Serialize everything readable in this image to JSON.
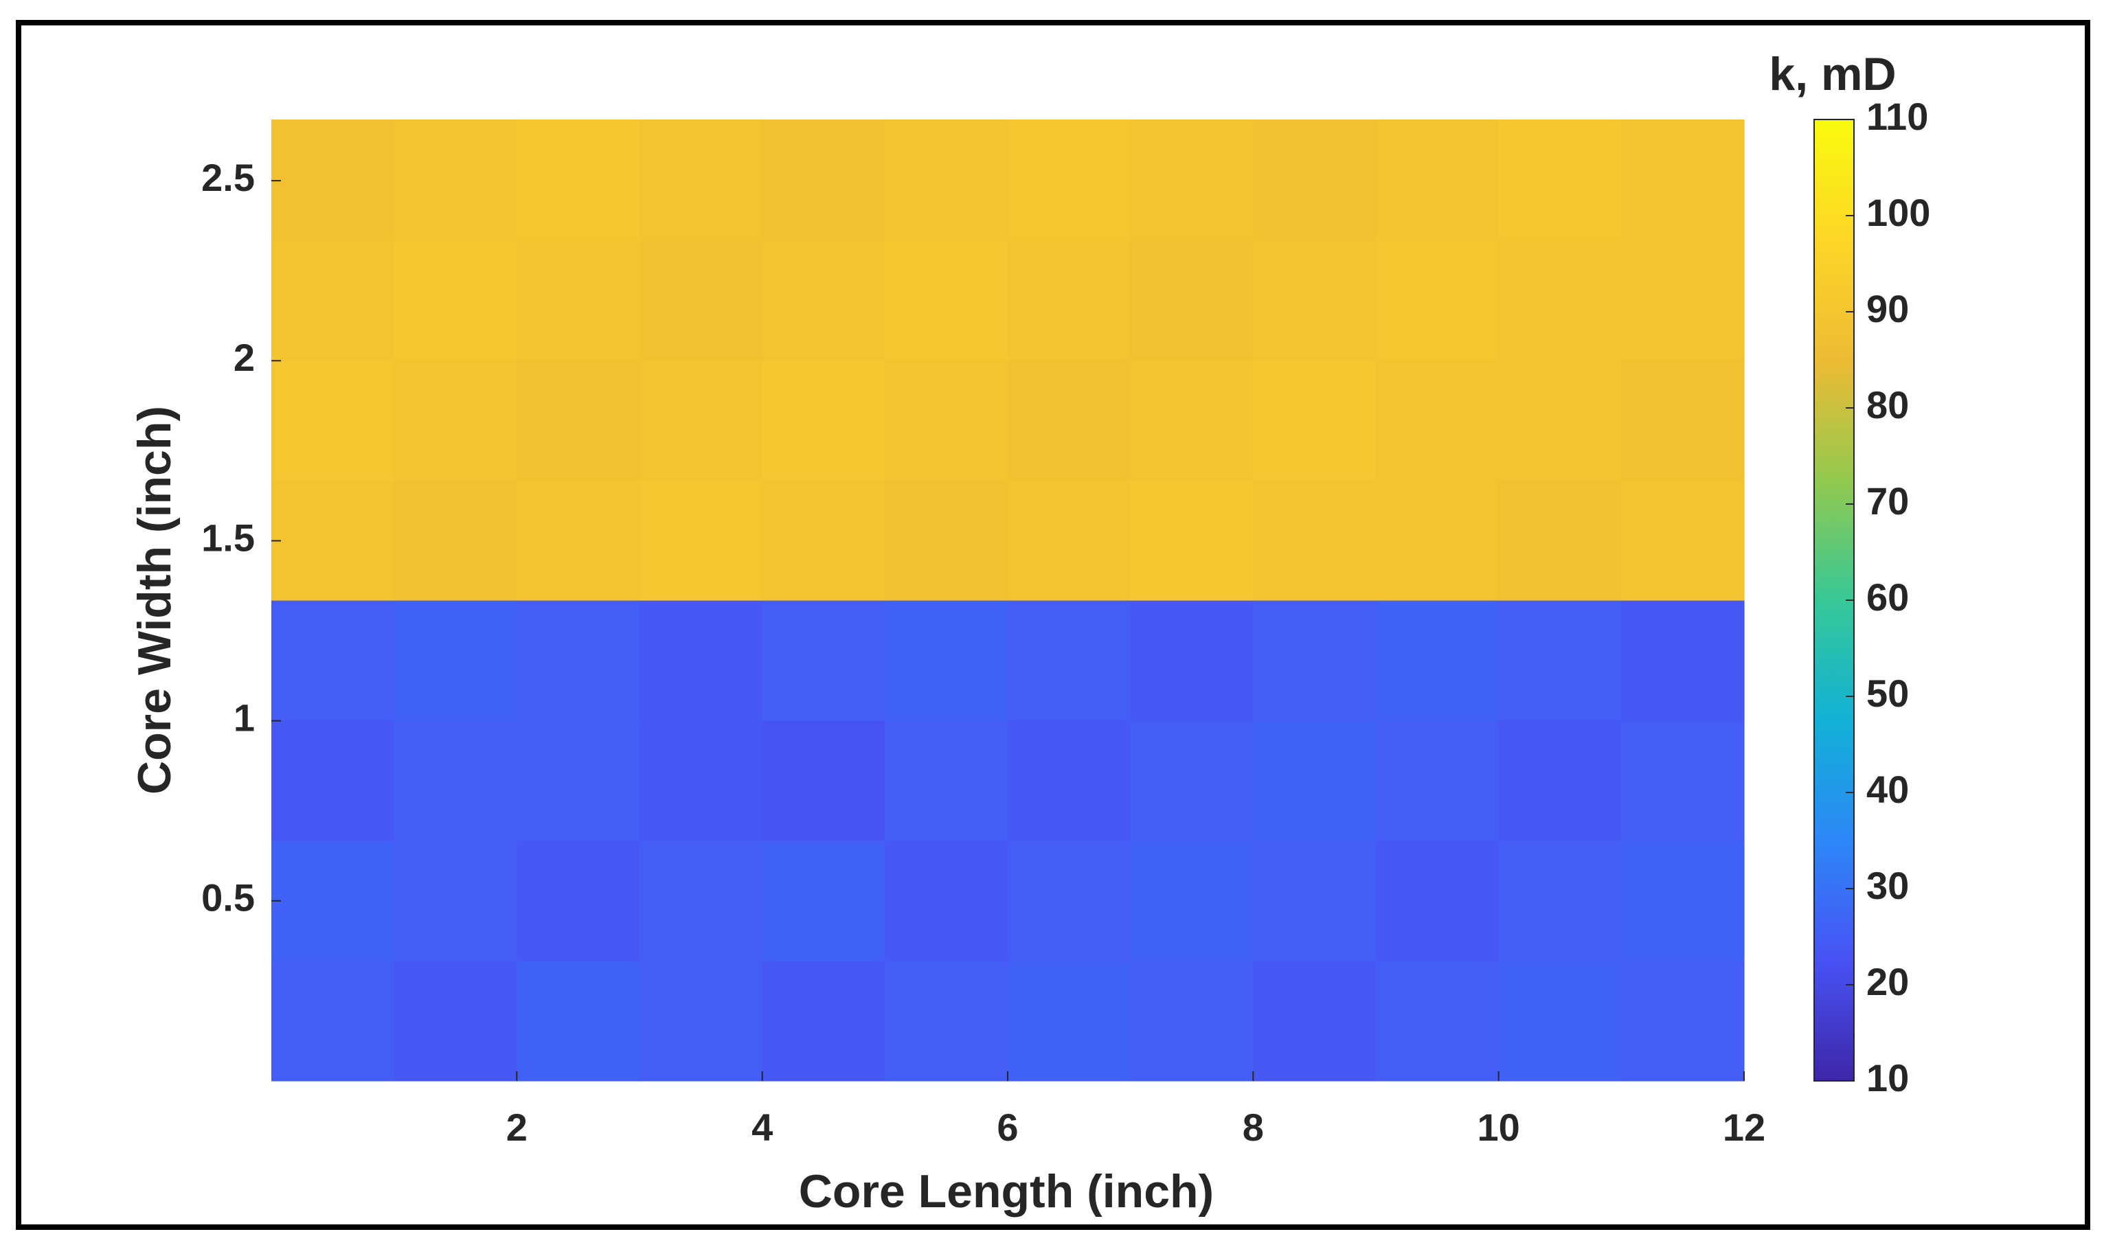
{
  "chart_data": {
    "type": "heatmap",
    "x_label": "Core Length (inch)",
    "y_label": "Core Width (inch)",
    "colorbar_label": "k, mD",
    "xlim": [
      0,
      12
    ],
    "xticks": [
      2,
      4,
      6,
      8,
      10,
      12
    ],
    "ylim": [
      0,
      2.67
    ],
    "yticks": [
      0.5,
      1,
      1.5,
      2,
      2.5
    ],
    "clim": [
      10,
      110
    ],
    "cticks": [
      10,
      20,
      30,
      40,
      50,
      60,
      70,
      80,
      90,
      100,
      110
    ],
    "colormap": [
      "#3e26a8",
      "#4852f4",
      "#2d87f7",
      "#12b1d6",
      "#37c897",
      "#93c94f",
      "#eebb34",
      "#fdd627",
      "#f9fb0e"
    ],
    "z": [
      [
        25,
        24,
        26,
        25,
        24,
        25,
        26,
        25,
        24,
        25,
        26,
        25
      ],
      [
        26,
        25,
        24,
        25,
        26,
        24,
        25,
        26,
        25,
        24,
        25,
        26
      ],
      [
        24,
        25,
        25,
        24,
        23,
        25,
        24,
        25,
        26,
        25,
        24,
        25
      ],
      [
        25,
        26,
        25,
        24,
        25,
        26,
        25,
        24,
        25,
        26,
        25,
        24
      ],
      [
        89,
        88,
        89,
        90,
        89,
        88,
        89,
        90,
        89,
        89,
        88,
        89
      ],
      [
        90,
        89,
        88,
        89,
        90,
        89,
        88,
        89,
        90,
        89,
        89,
        88
      ],
      [
        89,
        90,
        89,
        88,
        89,
        90,
        89,
        88,
        89,
        90,
        89,
        89
      ],
      [
        88,
        89,
        90,
        89,
        88,
        89,
        90,
        89,
        88,
        89,
        90,
        89
      ]
    ]
  }
}
